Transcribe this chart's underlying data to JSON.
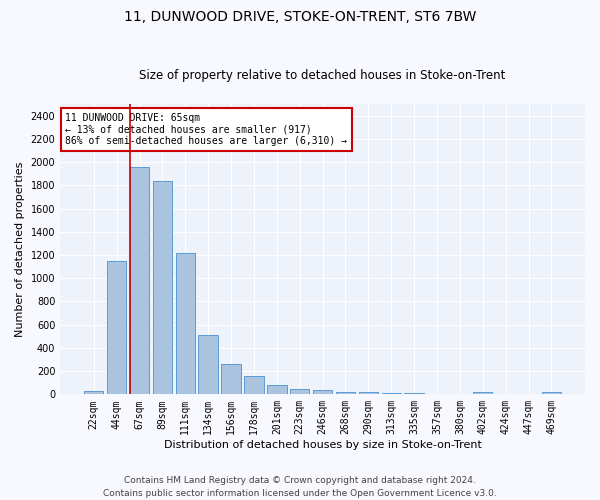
{
  "title": "11, DUNWOOD DRIVE, STOKE-ON-TRENT, ST6 7BW",
  "subtitle": "Size of property relative to detached houses in Stoke-on-Trent",
  "xlabel": "Distribution of detached houses by size in Stoke-on-Trent",
  "ylabel": "Number of detached properties",
  "categories": [
    "22sqm",
    "44sqm",
    "67sqm",
    "89sqm",
    "111sqm",
    "134sqm",
    "156sqm",
    "178sqm",
    "201sqm",
    "223sqm",
    "246sqm",
    "268sqm",
    "290sqm",
    "313sqm",
    "335sqm",
    "357sqm",
    "380sqm",
    "402sqm",
    "424sqm",
    "447sqm",
    "469sqm"
  ],
  "values": [
    30,
    1150,
    1960,
    1840,
    1220,
    510,
    265,
    155,
    80,
    50,
    40,
    20,
    20,
    15,
    15,
    0,
    0,
    20,
    0,
    0,
    20
  ],
  "bar_color": "#aac4df",
  "bar_edge_color": "#5a9bd4",
  "vline_x_idx": 2,
  "vline_color": "#cc0000",
  "ylim": [
    0,
    2500
  ],
  "yticks": [
    0,
    200,
    400,
    600,
    800,
    1000,
    1200,
    1400,
    1600,
    1800,
    2000,
    2200,
    2400
  ],
  "annotation_title": "11 DUNWOOD DRIVE: 65sqm",
  "annotation_line1": "← 13% of detached houses are smaller (917)",
  "annotation_line2": "86% of semi-detached houses are larger (6,310) →",
  "annotation_box_color": "#ffffff",
  "annotation_box_edge": "#cc0000",
  "footer1": "Contains HM Land Registry data © Crown copyright and database right 2024.",
  "footer2": "Contains public sector information licensed under the Open Government Licence v3.0.",
  "bg_color": "#edf2fb",
  "grid_color": "#ffffff",
  "fig_bg": "#f8f8ff",
  "title_fontsize": 10,
  "subtitle_fontsize": 8.5,
  "axis_label_fontsize": 8,
  "tick_fontsize": 7,
  "footer_fontsize": 6.5,
  "annotation_fontsize": 7
}
